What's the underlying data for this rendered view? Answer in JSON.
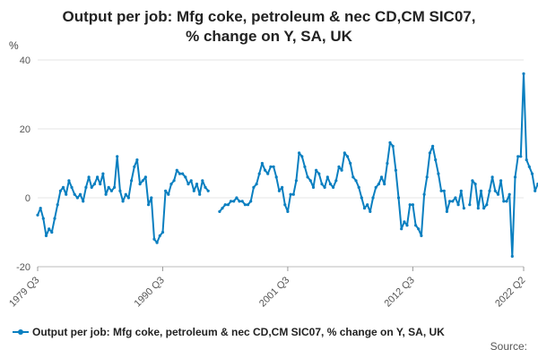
{
  "chart_data": {
    "type": "line",
    "title_line1": "Output per job: Mfg coke, petroleum & nec CD,CM SIC07,",
    "title_line2": "% change on Y, SA, UK",
    "ylabel": "%",
    "ylim": [
      -20,
      40
    ],
    "yticks": [
      -20,
      0,
      20,
      40
    ],
    "xticks": [
      "1979 Q3",
      "1990 Q3",
      "2001 Q3",
      "2012 Q3",
      "2022 Q2"
    ],
    "grid": true,
    "legend_position": "bottom",
    "series": [
      {
        "name": "Output per job: Mfg coke, petroleum & nec CD,CM SIC07, % change on Y, SA, UK",
        "color": "#0a7fc0",
        "segments": [
          {
            "start": "1979 Q3",
            "values": [
              -5,
              -3,
              -6,
              -11,
              -9,
              -10,
              -6,
              -2,
              2,
              3,
              1,
              5,
              3,
              1,
              0,
              1,
              -1,
              3,
              6,
              3,
              4,
              6,
              4,
              7,
              1,
              3,
              2,
              3,
              12,
              2,
              -1,
              1,
              0,
              5,
              9,
              11,
              4,
              5,
              6,
              -2,
              0,
              -12,
              -13,
              -11,
              -10,
              2,
              1,
              4,
              5,
              8,
              7,
              7,
              6,
              4,
              5,
              2,
              4,
              1,
              5,
              3,
              2
            ]
          },
          {
            "start": "1995 Q3",
            "values": [
              -4,
              -3,
              -2,
              -2,
              -1,
              -1,
              0,
              -1,
              -1,
              -2,
              -2,
              -1,
              3,
              4,
              7,
              10,
              8,
              7,
              9,
              9,
              6,
              2,
              3,
              -2,
              -4,
              1,
              1,
              5,
              13,
              12,
              9,
              6,
              5,
              3,
              8,
              7,
              4,
              3,
              6,
              4,
              3,
              5,
              9,
              8,
              13,
              12,
              10,
              6,
              5,
              3,
              0,
              -3,
              -2,
              -4,
              0,
              3,
              4,
              6,
              4,
              10,
              16,
              15,
              8,
              0,
              -9,
              -7,
              -8,
              -2,
              -2,
              -8,
              -9,
              -11,
              1,
              6,
              13,
              15,
              11,
              7,
              2,
              2,
              -4,
              -1,
              -1,
              0,
              -2,
              2,
              -3
            ]
          },
          {
            "start": "2017 Q3",
            "values": [
              -2,
              5,
              4,
              -3,
              2,
              -3,
              -2,
              2,
              6,
              2,
              1,
              5,
              -1,
              -1,
              1,
              -17,
              6,
              12,
              12,
              36,
              11,
              9,
              7,
              2,
              4
            ]
          }
        ]
      }
    ],
    "legend_label": "Output per job: Mfg coke, petroleum & nec CD,CM SIC07, % change on Y, SA, UK",
    "source_label": "Source:"
  }
}
